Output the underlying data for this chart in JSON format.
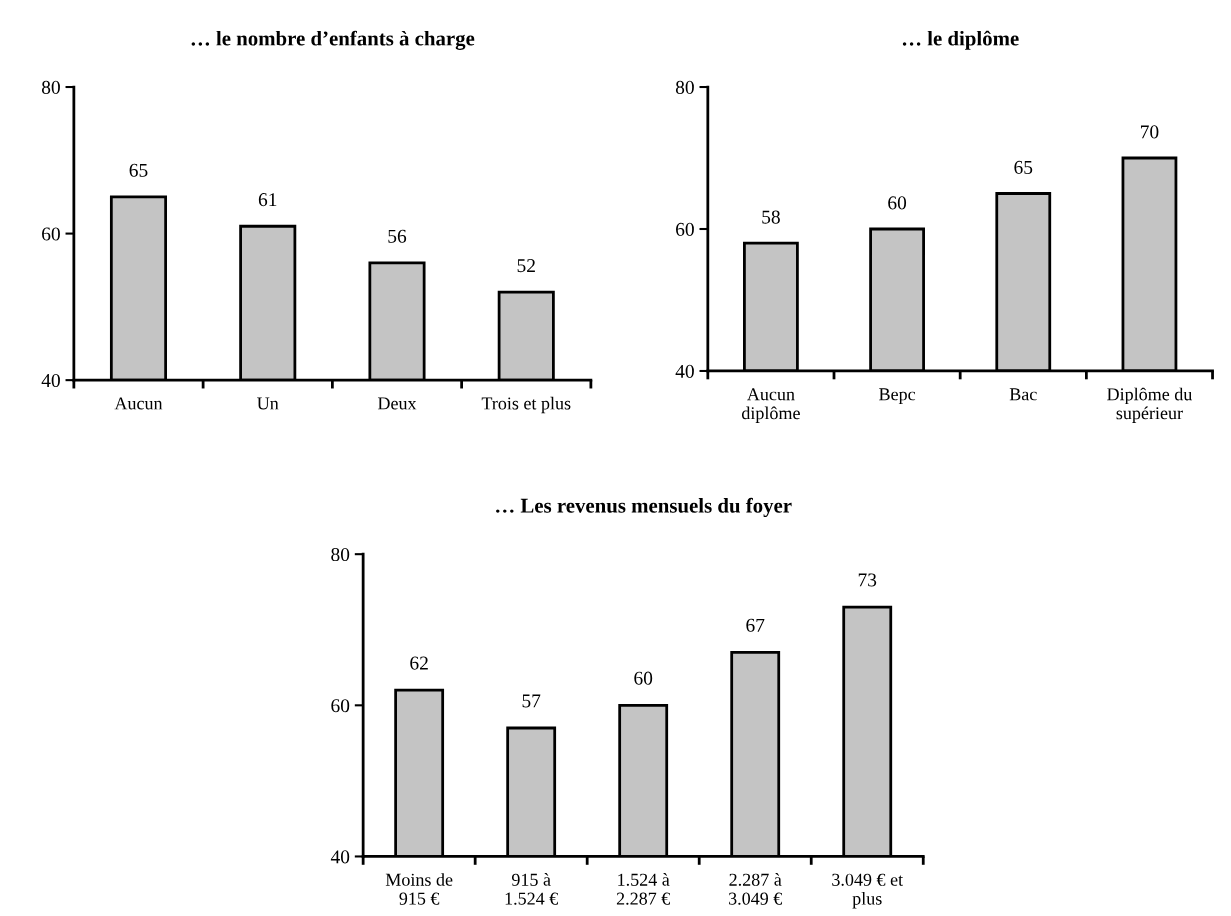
{
  "chart_data": [
    {
      "type": "bar",
      "title": "… le nombre d’enfants à charge",
      "categories": [
        "Aucun",
        "Un",
        "Deux",
        "Trois et plus"
      ],
      "values": [
        65,
        61,
        56,
        52
      ],
      "color": "#c4c4c4",
      "ylim": [
        40,
        80
      ],
      "yticks": [
        40,
        60,
        80
      ],
      "data_labels": true,
      "grid": false,
      "legend": false
    },
    {
      "type": "bar",
      "title": "… le diplôme",
      "categories": [
        "Aucun\ndiplôme",
        "Bepc",
        "Bac",
        "Diplôme du\nsupérieur"
      ],
      "values": [
        58,
        60,
        65,
        70
      ],
      "color": "#c4c4c4",
      "ylim": [
        40,
        80
      ],
      "yticks": [
        40,
        60,
        80
      ],
      "data_labels": true,
      "grid": false,
      "legend": false
    },
    {
      "type": "bar",
      "title": "… Les revenus mensuels du foyer",
      "categories": [
        "Moins de\n915 €",
        "915 à\n1.524 €",
        "1.524 à\n2.287 €",
        "2.287 à\n3.049 €",
        "3.049 € et\nplus"
      ],
      "values": [
        62,
        57,
        60,
        67,
        73
      ],
      "color": "#c4c4c4",
      "ylim": [
        40,
        80
      ],
      "yticks": [
        40,
        60,
        80
      ],
      "data_labels": true,
      "grid": false,
      "legend": false
    }
  ]
}
